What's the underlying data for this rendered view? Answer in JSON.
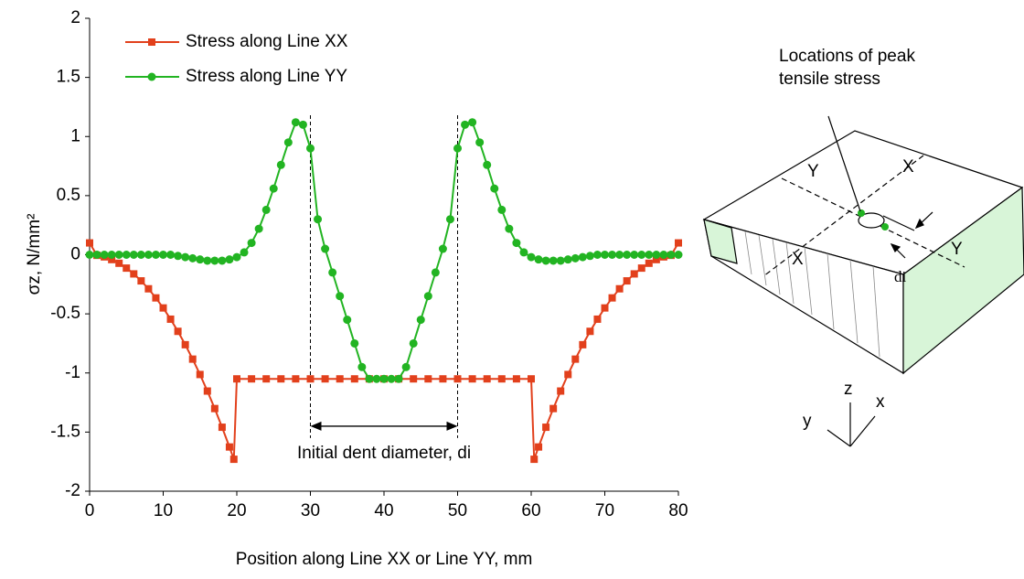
{
  "chart_data": {
    "type": "line",
    "x_label": "Position along Line XX or Line YY, mm",
    "y_label": "σz, N/mm²",
    "xlim": [
      0,
      80
    ],
    "xticks": [
      0,
      10,
      20,
      30,
      40,
      50,
      60,
      70,
      80
    ],
    "ylim": [
      -2,
      2
    ],
    "yticks": [
      -2,
      -1.5,
      -1,
      -0.5,
      0,
      0.5,
      1,
      1.5,
      2
    ],
    "legend": "upper left",
    "series": [
      {
        "name": "Stress along Line XX",
        "color": "#e2401c",
        "marker": "square",
        "x": [
          0,
          1,
          2,
          3,
          4,
          5,
          6,
          7,
          8,
          9,
          10,
          11,
          12,
          13,
          14,
          15,
          16,
          17,
          18,
          19,
          19.6,
          20,
          22,
          24,
          26,
          28,
          30,
          32,
          34,
          36,
          38,
          40,
          42,
          44,
          46,
          48,
          50,
          52,
          54,
          56,
          58,
          60,
          60.4,
          61,
          62,
          63,
          64,
          65,
          66,
          67,
          68,
          69,
          70,
          71,
          72,
          73,
          74,
          75,
          76,
          77,
          78,
          79,
          80
        ],
        "values": [
          0.1,
          -0.005,
          -0.018,
          -0.041,
          -0.072,
          -0.113,
          -0.162,
          -0.221,
          -0.288,
          -0.365,
          -0.45,
          -0.545,
          -0.648,
          -0.761,
          -0.883,
          -1.013,
          -1.153,
          -1.301,
          -1.459,
          -1.626,
          -1.73,
          -1.05,
          -1.05,
          -1.05,
          -1.05,
          -1.05,
          -1.05,
          -1.05,
          -1.05,
          -1.05,
          -1.05,
          -1.05,
          -1.05,
          -1.05,
          -1.05,
          -1.05,
          -1.05,
          -1.05,
          -1.05,
          -1.05,
          -1.05,
          -1.05,
          -1.73,
          -1.626,
          -1.459,
          -1.301,
          -1.153,
          -1.013,
          -0.883,
          -0.761,
          -0.648,
          -0.545,
          -0.45,
          -0.365,
          -0.288,
          -0.221,
          -0.162,
          -0.113,
          -0.072,
          -0.041,
          -0.018,
          -0.005,
          0.1
        ]
      },
      {
        "name": "Stress along Line YY",
        "color": "#22b422",
        "marker": "circle",
        "x": [
          0,
          1,
          2,
          3,
          4,
          5,
          6,
          7,
          8,
          9,
          10,
          11,
          12,
          13,
          14,
          15,
          16,
          17,
          18,
          19,
          20,
          21,
          22,
          23,
          24,
          25,
          26,
          27,
          28,
          29,
          30,
          31,
          32,
          33,
          34,
          35,
          36,
          37,
          38,
          39,
          40,
          41,
          42,
          43,
          44,
          45,
          46,
          47,
          48,
          49,
          50,
          51,
          52,
          53,
          54,
          55,
          56,
          57,
          58,
          59,
          60,
          61,
          62,
          63,
          64,
          65,
          66,
          67,
          68,
          69,
          70,
          71,
          72,
          73,
          74,
          75,
          76,
          77,
          78,
          79,
          80
        ],
        "values": [
          0,
          0,
          0,
          0,
          0,
          0,
          0,
          0,
          0,
          0,
          0,
          0,
          -0.01,
          -0.02,
          -0.03,
          -0.04,
          -0.05,
          -0.05,
          -0.05,
          -0.04,
          -0.02,
          0.02,
          0.1,
          0.22,
          0.38,
          0.56,
          0.76,
          0.95,
          1.12,
          1.1,
          0.9,
          0.3,
          0.05,
          -0.15,
          -0.35,
          -0.55,
          -0.75,
          -0.95,
          -1.05,
          -1.05,
          -1.05,
          -1.05,
          -1.05,
          -0.95,
          -0.75,
          -0.55,
          -0.35,
          -0.15,
          0.05,
          0.3,
          0.9,
          1.1,
          1.12,
          0.95,
          0.76,
          0.56,
          0.38,
          0.22,
          0.1,
          0.02,
          -0.02,
          -0.04,
          -0.05,
          -0.05,
          -0.05,
          -0.04,
          -0.03,
          -0.02,
          -0.01,
          0,
          0,
          0,
          0,
          0,
          0,
          0,
          0,
          0,
          0,
          0,
          0
        ]
      }
    ],
    "annotation": {
      "text": "Initial dent diameter, di",
      "x": [
        30,
        50
      ]
    }
  },
  "diagram": {
    "callout": [
      "Locations of peak",
      "tensile stress"
    ],
    "line_labels": [
      "Y",
      "X",
      "X",
      "Y"
    ],
    "dent_label": "di",
    "axis_labels": {
      "z": "z",
      "x": "x",
      "y": "y"
    }
  }
}
